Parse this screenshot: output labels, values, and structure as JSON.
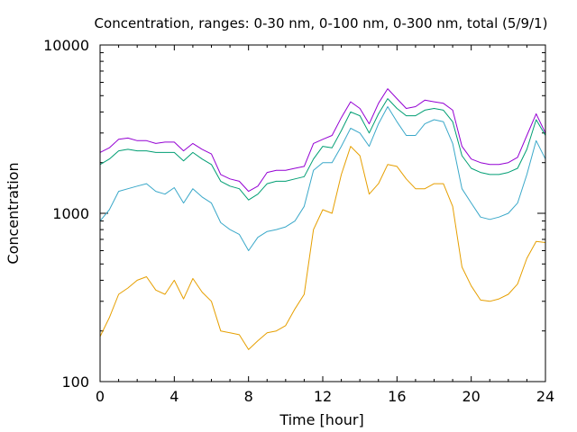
{
  "chart_data": {
    "type": "line",
    "title": "Concentration, ranges: 0-30 nm, 0-100 nm, 0-300 nm, total (5/9/1)",
    "xlabel": "Time [hour]",
    "ylabel": "Concentration",
    "xlim": [
      0,
      24
    ],
    "ylim": [
      100,
      10000
    ],
    "yscale": "log",
    "grid": false,
    "xticks": [
      0,
      4,
      8,
      12,
      16,
      20,
      24
    ],
    "xtick_labels": [
      "0",
      "4",
      "8",
      "12",
      "16",
      "20",
      "24"
    ],
    "yticks": [
      100,
      1000,
      10000
    ],
    "ytick_labels": [
      "100",
      "1000",
      "10000"
    ],
    "colors": {
      "0-30 nm": "#e69f00",
      "0-100 nm": "#3aa8c9",
      "0-300 nm": "#009e73",
      "total": "#9400d3",
      "frame": "#000000"
    },
    "series": [
      {
        "key": "0-30 nm",
        "x": [
          0,
          0.5,
          1,
          1.5,
          2,
          2.5,
          3,
          3.5,
          4,
          4.5,
          5,
          5.5,
          6,
          6.5,
          7,
          7.5,
          8,
          8.5,
          9,
          9.5,
          10,
          10.5,
          11,
          11.5,
          12,
          12.5,
          13,
          13.5,
          14,
          14.5,
          15,
          15.5,
          16,
          16.5,
          17,
          17.5,
          18,
          18.5,
          19,
          19.5,
          20,
          20.5,
          21,
          21.5,
          22,
          22.5,
          23,
          23.5,
          24
        ],
        "values": [
          185,
          240,
          330,
          360,
          400,
          420,
          350,
          330,
          400,
          310,
          410,
          340,
          300,
          200,
          195,
          190,
          155,
          175,
          195,
          200,
          215,
          270,
          330,
          800,
          1050,
          1000,
          1700,
          2500,
          2200,
          1300,
          1500,
          1950,
          1900,
          1600,
          1400,
          1400,
          1500,
          1500,
          1100,
          480,
          370,
          305,
          300,
          310,
          330,
          380,
          540,
          680,
          670
        ]
      },
      {
        "key": "0-100 nm",
        "x": [
          0,
          0.5,
          1,
          1.5,
          2,
          2.5,
          3,
          3.5,
          4,
          4.5,
          5,
          5.5,
          6,
          6.5,
          7,
          7.5,
          8,
          8.5,
          9,
          9.5,
          10,
          10.5,
          11,
          11.5,
          12,
          12.5,
          13,
          13.5,
          14,
          14.5,
          15,
          15.5,
          16,
          16.5,
          17,
          17.5,
          18,
          18.5,
          19,
          19.5,
          20,
          20.5,
          21,
          21.5,
          22,
          22.5,
          23,
          23.5,
          24
        ],
        "values": [
          900,
          1050,
          1350,
          1400,
          1450,
          1500,
          1350,
          1300,
          1420,
          1150,
          1400,
          1250,
          1150,
          880,
          800,
          750,
          600,
          720,
          780,
          800,
          830,
          900,
          1100,
          1800,
          2000,
          2000,
          2500,
          3200,
          3000,
          2500,
          3400,
          4300,
          3500,
          2900,
          2900,
          3400,
          3600,
          3500,
          2600,
          1400,
          1150,
          950,
          920,
          950,
          1000,
          1150,
          1700,
          2700,
          2100
        ]
      },
      {
        "key": "0-300 nm",
        "x": [
          0,
          0.5,
          1,
          1.5,
          2,
          2.5,
          3,
          3.5,
          4,
          4.5,
          5,
          5.5,
          6,
          6.5,
          7,
          7.5,
          8,
          8.5,
          9,
          9.5,
          10,
          10.5,
          11,
          11.5,
          12,
          12.5,
          13,
          13.5,
          14,
          14.5,
          15,
          15.5,
          16,
          16.5,
          17,
          17.5,
          18,
          18.5,
          19,
          19.5,
          20,
          20.5,
          21,
          21.5,
          22,
          22.5,
          23,
          23.5,
          24
        ],
        "values": [
          1950,
          2100,
          2350,
          2400,
          2350,
          2350,
          2300,
          2300,
          2300,
          2050,
          2300,
          2100,
          1950,
          1550,
          1450,
          1400,
          1200,
          1300,
          1500,
          1550,
          1550,
          1600,
          1650,
          2100,
          2500,
          2450,
          3100,
          4000,
          3800,
          3000,
          3900,
          4800,
          4200,
          3800,
          3800,
          4100,
          4200,
          4100,
          3500,
          2200,
          1850,
          1750,
          1700,
          1700,
          1750,
          1850,
          2400,
          3600,
          2900
        ]
      },
      {
        "key": "total",
        "x": [
          0,
          0.5,
          1,
          1.5,
          2,
          2.5,
          3,
          3.5,
          4,
          4.5,
          5,
          5.5,
          6,
          6.5,
          7,
          7.5,
          8,
          8.5,
          9,
          9.5,
          10,
          10.5,
          11,
          11.5,
          12,
          12.5,
          13,
          13.5,
          14,
          14.5,
          15,
          15.5,
          16,
          16.5,
          17,
          17.5,
          18,
          18.5,
          19,
          19.5,
          20,
          20.5,
          21,
          21.5,
          22,
          22.5,
          23,
          23.5,
          24
        ],
        "values": [
          2300,
          2450,
          2750,
          2800,
          2700,
          2700,
          2600,
          2650,
          2650,
          2350,
          2600,
          2400,
          2250,
          1700,
          1600,
          1550,
          1350,
          1450,
          1750,
          1800,
          1800,
          1850,
          1900,
          2600,
          2750,
          2900,
          3700,
          4600,
          4200,
          3400,
          4500,
          5500,
          4800,
          4200,
          4300,
          4700,
          4600,
          4500,
          4100,
          2500,
          2100,
          2000,
          1950,
          1950,
          2000,
          2150,
          2900,
          3900,
          3000
        ]
      }
    ]
  }
}
